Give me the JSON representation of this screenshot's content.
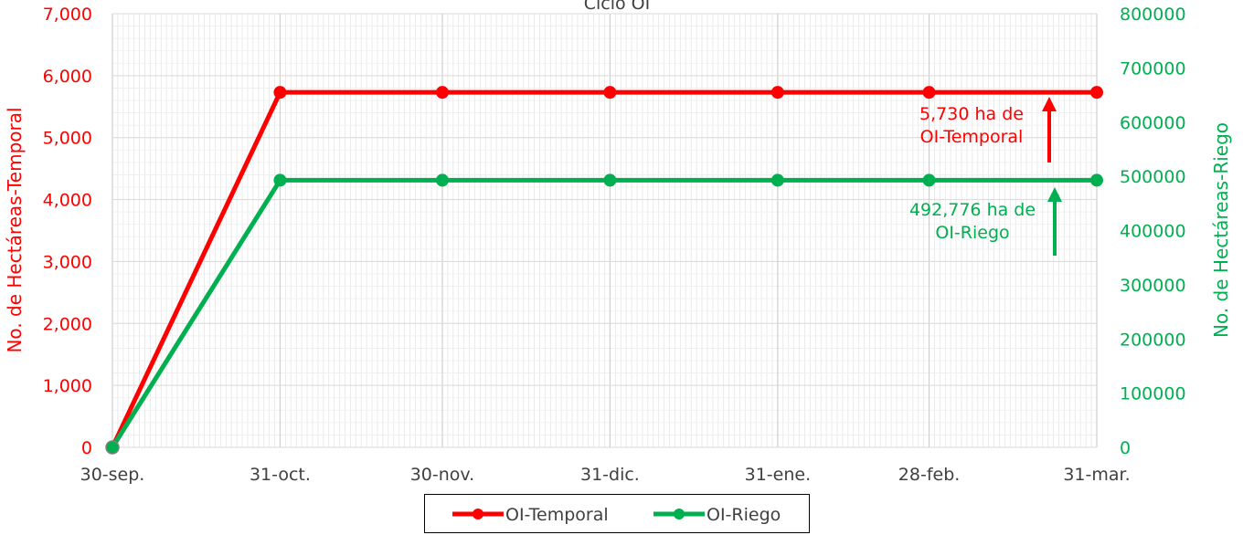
{
  "chart_data": {
    "type": "line",
    "title": "Ciclo OI",
    "x": [
      "30-sep.",
      "31-oct.",
      "30-nov.",
      "31-dic.",
      "31-ene.",
      "28-feb.",
      "31-mar."
    ],
    "x_days": [
      0,
      31,
      61,
      92,
      123,
      151,
      182
    ],
    "ylabel_left": "No. de Hectáreas-Temporal",
    "ylabel_right": "No. de Hectáreas-Riego",
    "ylim_left": [
      0,
      7000
    ],
    "ylim_right": [
      0,
      800000
    ],
    "yticks_left": [
      "0",
      "1,000",
      "2,000",
      "3,000",
      "4,000",
      "5,000",
      "6,000",
      "7,000"
    ],
    "yticks_right": [
      "0",
      "100000",
      "200000",
      "300000",
      "400000",
      "500000",
      "600000",
      "700000",
      "800000"
    ],
    "grid": true,
    "legend_position": "bottom",
    "series": [
      {
        "name": "OI-Temporal",
        "axis": "left",
        "color": "#ff0000",
        "values": [
          0,
          5730,
          5730,
          5730,
          5730,
          5730,
          5730
        ]
      },
      {
        "name": "OI-Riego",
        "axis": "right",
        "color": "#00b050",
        "values": [
          0,
          492776,
          492776,
          492776,
          492776,
          492776,
          492776
        ]
      }
    ],
    "annotations": [
      {
        "series": "OI-Temporal",
        "lines": [
          "5,730 ha de",
          "OI-Temporal"
        ],
        "color": "#ff0000"
      },
      {
        "series": "OI-Riego",
        "lines": [
          "492,776 ha de",
          "OI-Riego"
        ],
        "color": "#00b050"
      }
    ]
  }
}
